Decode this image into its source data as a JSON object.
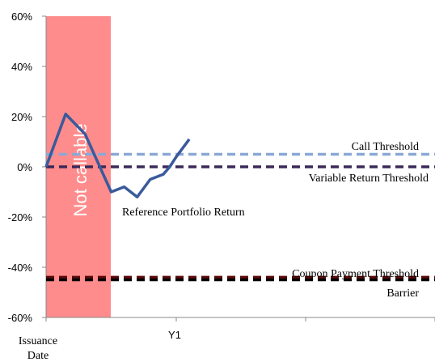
{
  "chart_data": {
    "type": "line",
    "y_unit": "%",
    "ylim": [
      -60,
      60
    ],
    "y_ticks": [
      "60%",
      "40%",
      "20%",
      "0%",
      "-20%",
      "-40%",
      "-60%"
    ],
    "x_ticks": [
      "Issuance\nDate",
      "Y1"
    ],
    "grid": false,
    "shaded_region": {
      "label": "Not callable",
      "color": "#ff8c8c"
    },
    "series": [
      {
        "name": "Reference Portfolio Return",
        "color": "#3a5a9c",
        "points": [
          [
            0.0,
            0
          ],
          [
            0.15,
            21
          ],
          [
            0.3,
            13
          ],
          [
            0.5,
            -10
          ],
          [
            0.6,
            -8
          ],
          [
            0.7,
            -12
          ],
          [
            0.8,
            -5
          ],
          [
            0.9,
            -3
          ],
          [
            0.95,
            0
          ],
          [
            1.0,
            4
          ],
          [
            1.1,
            11
          ]
        ]
      }
    ],
    "thresholds": [
      {
        "label": "Call Threshold",
        "value": 5,
        "color": "#8aa8d6"
      },
      {
        "label": "Variable Return Threshold",
        "value": 0,
        "color": "#3b2a5a"
      },
      {
        "label": "Coupon Payment Threshold",
        "value": -44,
        "color": "#5a0a0a"
      },
      {
        "label": "Barrier",
        "value": -45,
        "color": "#000000"
      }
    ]
  }
}
